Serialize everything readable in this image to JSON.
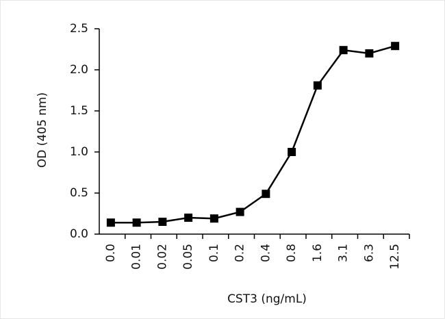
{
  "chart_data": {
    "type": "line",
    "x_label": "CST3 (ng/mL)",
    "y_label": "OD (405 nm)",
    "categories": [
      "0.0",
      "0.01",
      "0.02",
      "0.05",
      "0.1",
      "0.2",
      "0.4",
      "0.8",
      "1.6",
      "3.1",
      "6.3",
      "12.5"
    ],
    "series": [
      {
        "color": "#000000",
        "values": [
          0.14,
          0.14,
          0.15,
          0.2,
          0.19,
          0.27,
          0.49,
          1.0,
          1.81,
          2.24,
          2.2,
          2.29
        ]
      }
    ],
    "ylim": [
      0,
      2.5
    ],
    "yticks": [
      {
        "value": 0,
        "label": "0.0"
      },
      0.5,
      {
        "value": 1,
        "label": "1.0"
      },
      1.5,
      {
        "value": 2,
        "label": "2.0"
      },
      2.5
    ]
  }
}
